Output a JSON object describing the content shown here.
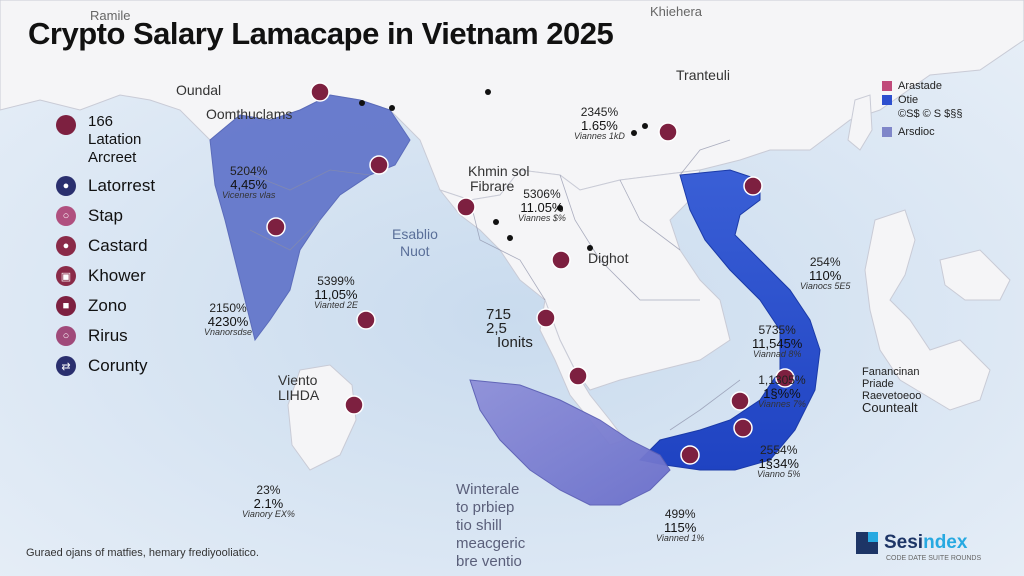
{
  "title": "Crypto Salary Lamacape in Vietnam 2025",
  "faint_labels": {
    "top_left": "Ramile",
    "top_right": "Khiehera",
    "oundal": "Oundal",
    "oomthuclams": "Oomthuclams",
    "tranteuli": "Tranteuli"
  },
  "legend_top": {
    "num": "166",
    "line1": "Latation",
    "line2": "Arcreet"
  },
  "legend_items": [
    {
      "label": "Latorrest",
      "color": "#2a2f6e",
      "icon": "dot-icon"
    },
    {
      "label": "Stap",
      "color": "#b0507f",
      "icon": "ring-icon"
    },
    {
      "label": "Castard",
      "color": "#8a2a48",
      "icon": "dot-icon"
    },
    {
      "label": "Khower",
      "color": "#8a2a48",
      "icon": "box-icon"
    },
    {
      "label": "Zono",
      "color": "#7d2040",
      "icon": "square-icon"
    },
    {
      "label": "Rirus",
      "color": "#a04a7a",
      "icon": "ring-icon"
    },
    {
      "label": "Corunty",
      "color": "#2a2f6e",
      "icon": "arrows-icon"
    }
  ],
  "right_legend": {
    "line1": "Arastade",
    "line2": "Otie",
    "line3": "©S$ © S $§§",
    "line4": "Arsdioc"
  },
  "place_labels": {
    "eablio": "Esablio",
    "nuot": "Nuot",
    "khmin": "Khmin sol",
    "fibrare": "Fibrare",
    "dighot": "Dighot",
    "viento": "Viento",
    "lihda": "LIHDA",
    "n715": "715",
    "n25": "2,5",
    "ionits": "Ionits"
  },
  "stats": [
    {
      "id": "india",
      "a": "5204%",
      "b": "4,45%",
      "c": "Viceners vlas"
    },
    {
      "id": "south-india",
      "a": "5399%",
      "b": "11,05%",
      "c": "Vianted 2E"
    },
    {
      "id": "west-india",
      "a": "2150%",
      "b": "4230%",
      "c": "Vnanorsdse"
    },
    {
      "id": "sri-lanka",
      "a": "23%",
      "b": "2.1%",
      "c": "Vianory EX%"
    },
    {
      "id": "china",
      "a": "2345%",
      "b": "1.65%",
      "c": "Viannes 1kD"
    },
    {
      "id": "myanmar",
      "a": "5306%",
      "b": "11.05%",
      "c": "Viannes $%"
    },
    {
      "id": "vn-north",
      "a": "254%",
      "b": "110%",
      "c": "Vianocs 5E5"
    },
    {
      "id": "vn-central",
      "a": "5735%",
      "b": "11,545%",
      "c": "Viannad 8%"
    },
    {
      "id": "vn-south",
      "a": "1,1305%",
      "b": "1§%%",
      "c": "Viannes 7%"
    },
    {
      "id": "vn-south2",
      "a": "2554%",
      "b": "1§34%",
      "c": "Vianno 5%"
    },
    {
      "id": "vn-bottom",
      "a": "499%",
      "b": "115%",
      "c": "Vianned 1%"
    }
  ],
  "right_note": {
    "line1": "Fanancinan",
    "line2": "Priade",
    "line3": "Raevetoeoo",
    "line4": "Countealt"
  },
  "center_note": {
    "line1": "Winterale",
    "line2": "to prbiep",
    "line3": "tio shill",
    "line4": "meacgeric",
    "line5": "bre ventio"
  },
  "footnote": "Guraed ojans of matfies, hemary frediyooliatico.",
  "logo": {
    "main": "Sesi",
    "accent": "ndex",
    "sub": "CODE DATE SUITE ROUNDS"
  },
  "colors": {
    "sea": "#dfeaf5",
    "land": "#f4f4f6",
    "india": "#5b72c8",
    "vietnam": "#2d4fcf",
    "marker": "#7d2040",
    "title": "#111111"
  }
}
